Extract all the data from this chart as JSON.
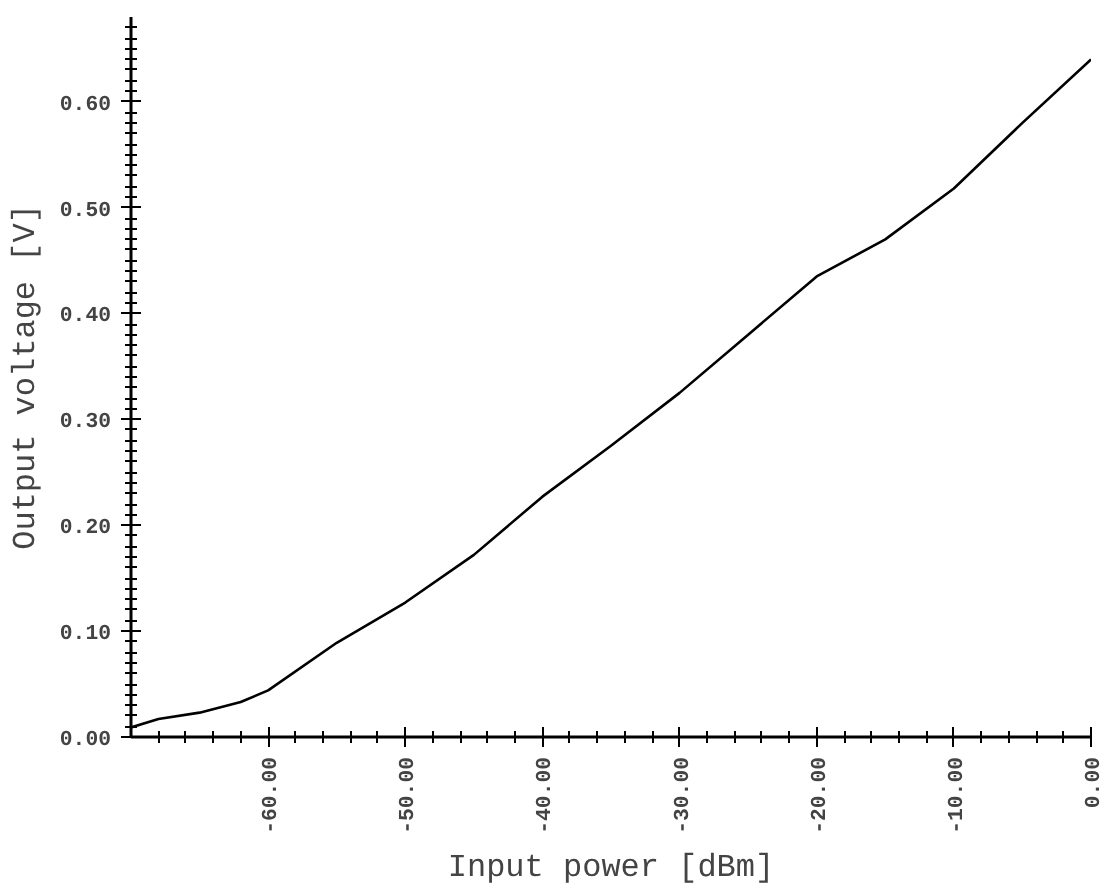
{
  "chart_data": {
    "type": "line",
    "xlabel": "Input power [dBm]",
    "ylabel": "Output voltage [V]",
    "xlim": [
      -70,
      0
    ],
    "ylim": [
      0,
      0.68
    ],
    "xticks": [
      {
        "value": -60,
        "label": "-60.00"
      },
      {
        "value": -50,
        "label": "-50.00"
      },
      {
        "value": -40,
        "label": "-40.00"
      },
      {
        "value": -30,
        "label": "-30.00"
      },
      {
        "value": -20,
        "label": "-20.00"
      },
      {
        "value": -10,
        "label": "-10.00"
      },
      {
        "value": 0,
        "label": "0.00"
      }
    ],
    "yticks": [
      {
        "value": 0,
        "label": "0.00"
      },
      {
        "value": 0.1,
        "label": "0.10"
      },
      {
        "value": 0.2,
        "label": "0.20"
      },
      {
        "value": 0.3,
        "label": "0.30"
      },
      {
        "value": 0.4,
        "label": "0.40"
      },
      {
        "value": 0.5,
        "label": "0.50"
      },
      {
        "value": 0.6,
        "label": "0.60"
      }
    ],
    "grid": false,
    "marker": "none",
    "line_style": "solid",
    "series": [
      {
        "color": "#000000",
        "x": [
          -70,
          -68,
          -65,
          -62,
          -60,
          -55,
          -50,
          -45,
          -40,
          -35,
          -30,
          -25,
          -20,
          -15,
          -10,
          -5,
          0
        ],
        "values": [
          0.009,
          0.017,
          0.023,
          0.033,
          0.044,
          0.089,
          0.127,
          0.172,
          0.227,
          0.275,
          0.325,
          0.38,
          0.435,
          0.47,
          0.518,
          0.58,
          0.64
        ]
      }
    ]
  }
}
